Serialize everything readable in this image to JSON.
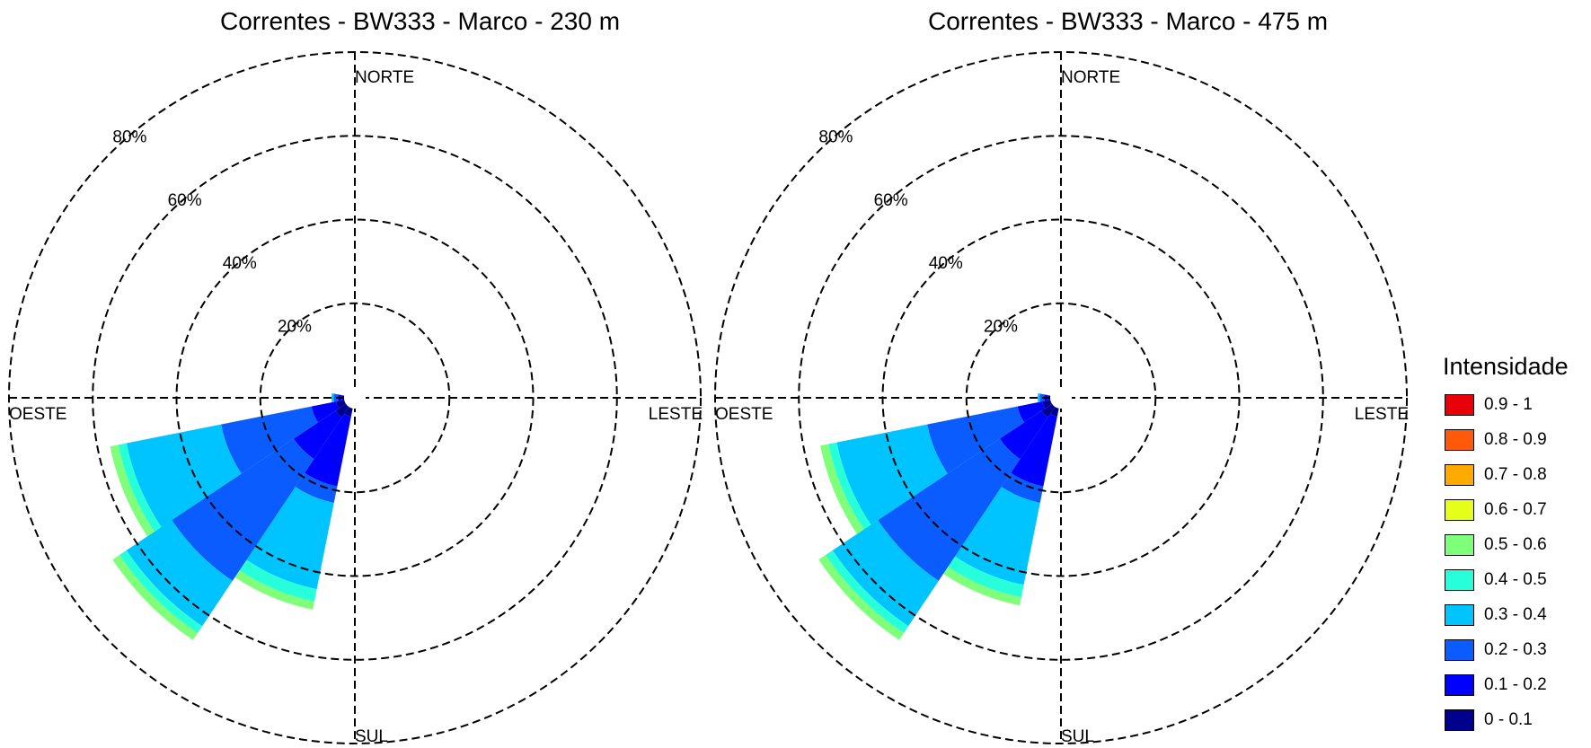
{
  "chart_data": [
    {
      "type": "polar-rose",
      "title": "Correntes - BW333 - Marco - 230 m",
      "directions": {
        "north": "NORTE",
        "south": "SUL",
        "east": "LESTE",
        "west": "OESTE"
      },
      "ring_labels": [
        "20%",
        "40%",
        "60%",
        "80%"
      ],
      "rmax_percent": 80,
      "sectors": [
        {
          "direction_deg": 202.5,
          "cum_percent": [
            2,
            19,
            23,
            44,
            47,
            49,
            49,
            49
          ]
        },
        {
          "direction_deg": 225,
          "cum_percent": [
            3,
            15,
            50,
            63,
            65,
            67,
            67,
            67
          ]
        },
        {
          "direction_deg": 247.5,
          "cum_percent": [
            2,
            8,
            30,
            53,
            55,
            57,
            57,
            57
          ]
        },
        {
          "direction_deg": 270,
          "cum_percent": [
            0.5,
            1.5,
            2.5,
            3,
            3,
            3,
            3,
            3
          ]
        }
      ]
    },
    {
      "type": "polar-rose",
      "title": "Correntes - BW333 - Marco - 475 m",
      "directions": {
        "north": "NORTE",
        "south": "SUL",
        "east": "LESTE",
        "west": "OESTE"
      },
      "ring_labels": [
        "20%",
        "40%",
        "60%",
        "80%"
      ],
      "rmax_percent": 80,
      "sectors": [
        {
          "direction_deg": 202.5,
          "cum_percent": [
            2,
            19,
            23,
            43,
            46,
            48,
            48,
            48
          ]
        },
        {
          "direction_deg": 225,
          "cum_percent": [
            3,
            15,
            50,
            63,
            65,
            67,
            67,
            67
          ]
        },
        {
          "direction_deg": 247.5,
          "cum_percent": [
            2,
            8,
            30,
            52,
            54,
            56,
            56,
            56
          ]
        },
        {
          "direction_deg": 270,
          "cum_percent": [
            0.5,
            1.5,
            2.5,
            3,
            3,
            3,
            3,
            3
          ]
        }
      ]
    }
  ],
  "legend": {
    "title": "Intensidade",
    "items": [
      {
        "label": "0.9 - 1",
        "color": "#e8000b"
      },
      {
        "label": "0.8 - 0.9",
        "color": "#ff5a0a"
      },
      {
        "label": "0.7 - 0.8",
        "color": "#ffaa00"
      },
      {
        "label": "0.6 - 0.7",
        "color": "#e6ff1a"
      },
      {
        "label": "0.5 - 0.6",
        "color": "#80ff7a"
      },
      {
        "label": "0.4 - 0.5",
        "color": "#26ffd9"
      },
      {
        "label": "0.3 - 0.4",
        "color": "#00c4ff"
      },
      {
        "label": "0.2 - 0.3",
        "color": "#0a5cff"
      },
      {
        "label": "0.1 - 0.2",
        "color": "#0000ff"
      },
      {
        "label": "0 - 0.1",
        "color": "#00008f"
      }
    ]
  }
}
